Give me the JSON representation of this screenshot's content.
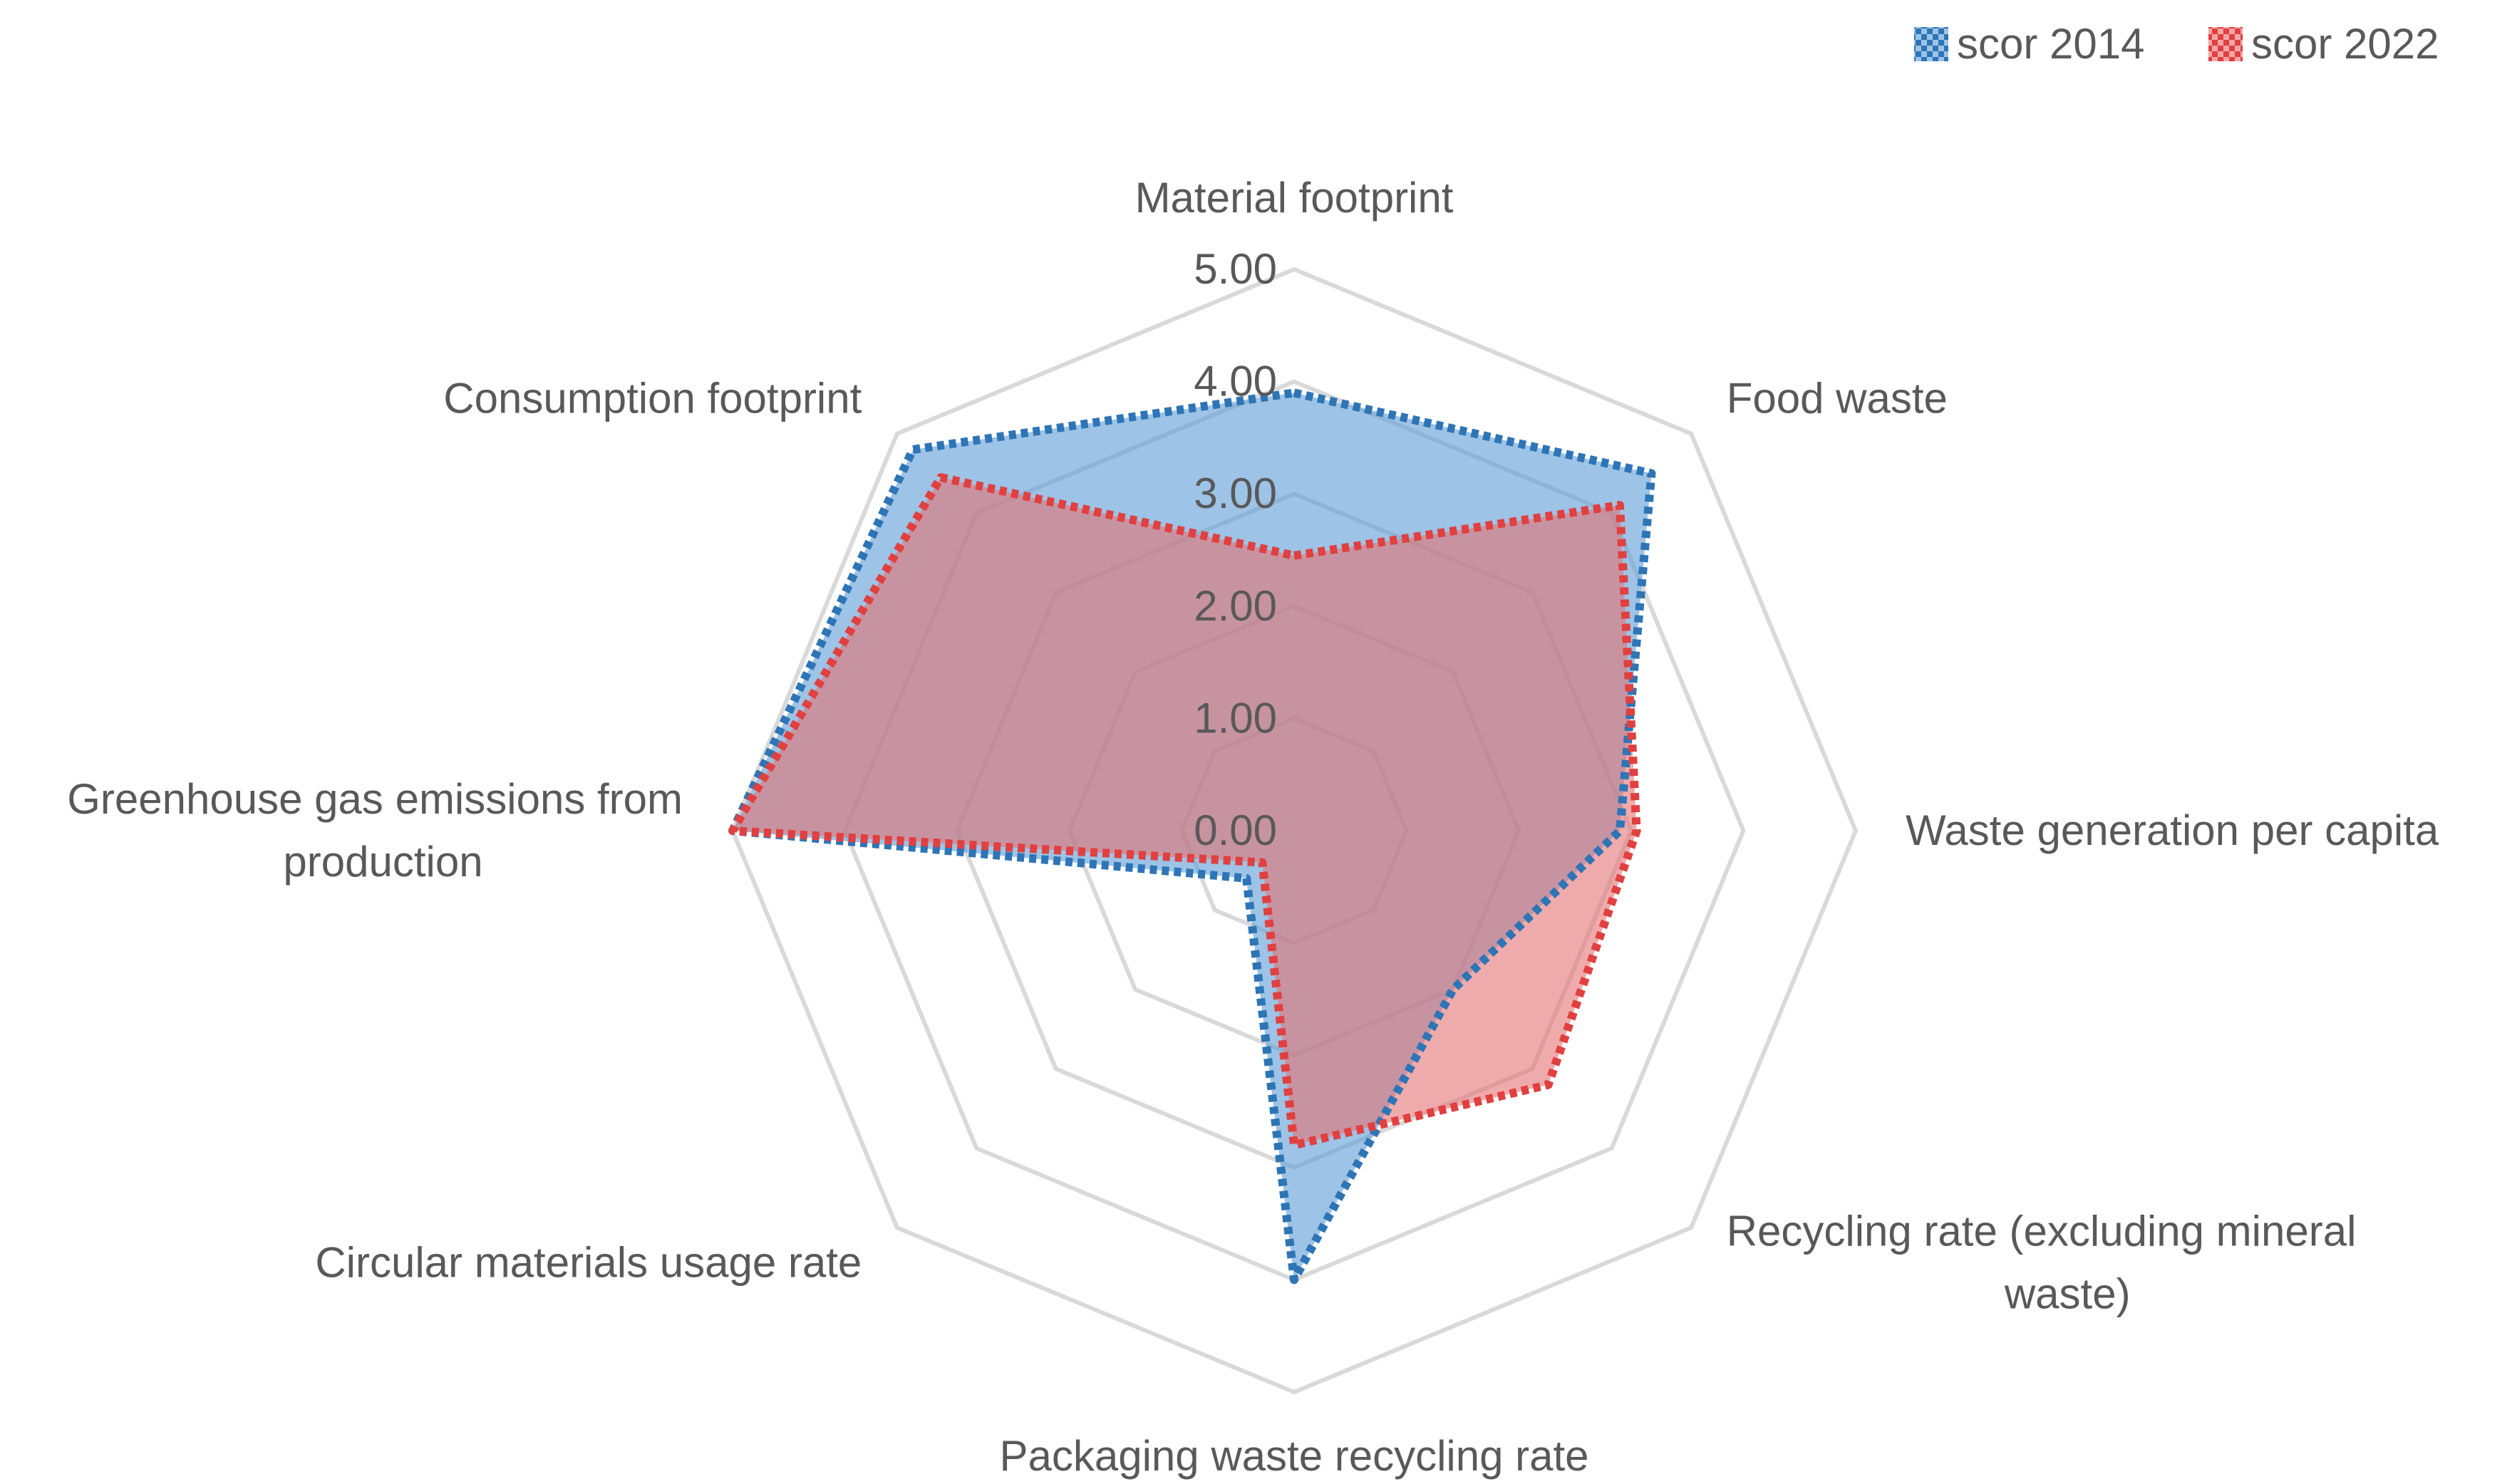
{
  "chart_data": {
    "type": "radar",
    "title": "",
    "categories": [
      "Material footprint",
      "Food waste",
      "Waste generation per capita",
      "Recycling rate (excluding mineral waste)",
      "Packaging waste recycling rate",
      "Circular materials usage rate",
      "Greenhouse gas emissions from production",
      "Consumption footprint"
    ],
    "category_lines": [
      [
        "Material footprint"
      ],
      [
        "Food waste"
      ],
      [
        "Waste generation per capita"
      ],
      [
        "Recycling rate (excluding mineral",
        "waste)"
      ],
      [
        "Packaging waste recycling rate"
      ],
      [
        "Circular materials usage rate"
      ],
      [
        "Greenhouse gas emissions from",
        "production"
      ],
      [
        "Consumption footprint"
      ]
    ],
    "rlim": [
      0,
      5
    ],
    "ticks": [
      0,
      1,
      2,
      3,
      4,
      5
    ],
    "tick_labels": [
      "0.00",
      "1.00",
      "2.00",
      "3.00",
      "4.00",
      "5.00"
    ],
    "series": [
      {
        "name": "scor 2014",
        "values": [
          3.9,
          4.5,
          2.9,
          2.0,
          4.0,
          0.6,
          5.0,
          4.8
        ],
        "line_color": "#2e75b6",
        "fill_color": "#5b9bd5"
      },
      {
        "name": "scor 2022",
        "values": [
          2.45,
          4.1,
          3.05,
          3.2,
          2.8,
          0.4,
          5.0,
          4.45
        ],
        "line_color": "#e04040",
        "fill_color": "#e57373"
      }
    ],
    "legend": {
      "position": "top-right"
    }
  }
}
